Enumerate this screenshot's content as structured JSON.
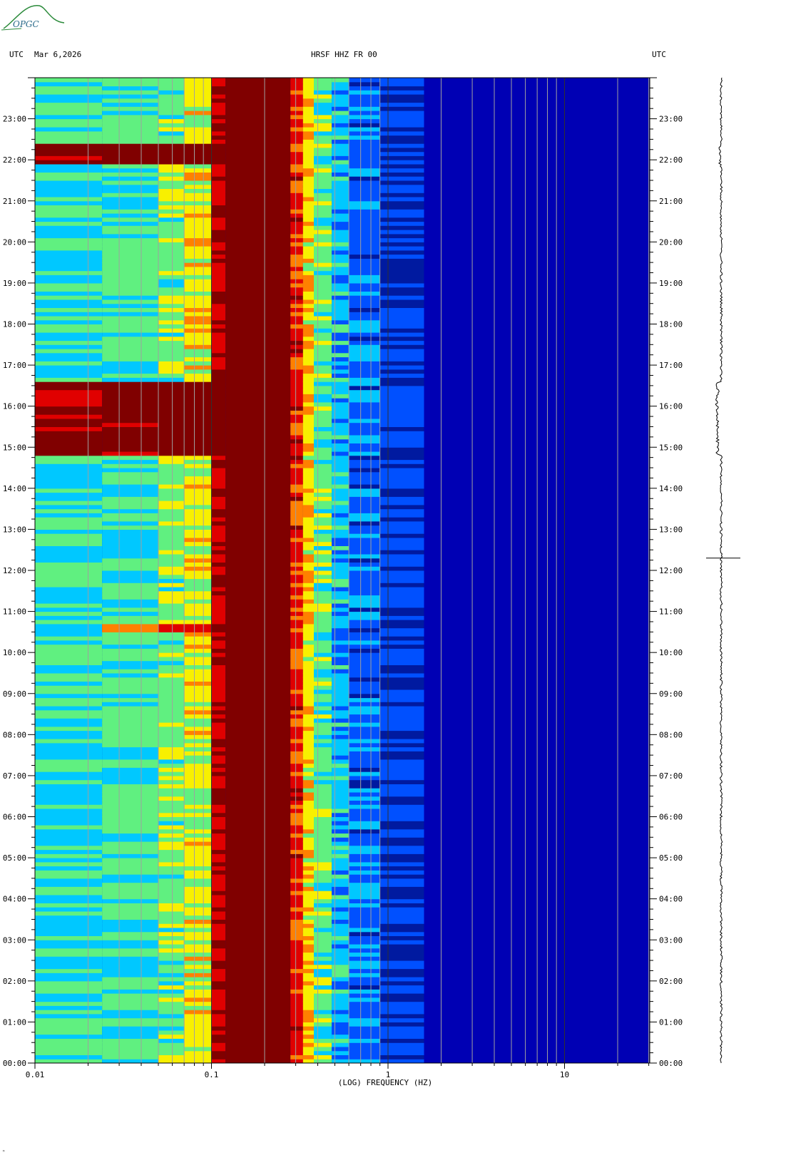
{
  "header": {
    "left_zone": "UTC",
    "date": "Mar 6,2026",
    "station": "HRSF HHZ FR 00",
    "right_zone": "UTC"
  },
  "logo_text": "OPGC",
  "footer_mark": "ᴹ",
  "colors": {
    "background": "#0000b4",
    "dark_blue": "#001aa0",
    "mid_blue": "#0050ff",
    "cyan": "#00c8ff",
    "green": "#60f080",
    "yellow": "#f8f000",
    "orange": "#ff8000",
    "red": "#e00000",
    "dark_red": "#800000",
    "grid": "#a0a0a0",
    "logo": "#2a8a3a"
  },
  "chart_data": {
    "type": "heatmap",
    "title": "HRSF HHZ FR 00",
    "xlabel": "(LOG) FREQUENCY (HZ)",
    "ylabel": "",
    "x_scale": "log",
    "xlim": [
      0.01,
      30
    ],
    "x_tick_labels": [
      "0.01",
      "0.1",
      "1",
      "10"
    ],
    "x_tick_values": [
      0.01,
      0.1,
      1,
      10
    ],
    "ylim_hours": [
      0,
      24
    ],
    "y_tick_labels": [
      "00:00",
      "01:00",
      "02:00",
      "03:00",
      "04:00",
      "05:00",
      "06:00",
      "07:00",
      "08:00",
      "09:00",
      "10:00",
      "11:00",
      "12:00",
      "13:00",
      "14:00",
      "15:00",
      "16:00",
      "17:00",
      "18:00",
      "19:00",
      "20:00",
      "21:00",
      "22:00",
      "23:00"
    ],
    "grid": true,
    "events": [
      {
        "start_hour": 14.8,
        "end_hour": 16.6,
        "level": "high"
      },
      {
        "start_hour": 21.9,
        "end_hour": 22.4,
        "level": "high"
      },
      {
        "start_hour": 10.5,
        "end_hour": 10.7,
        "level": "medium"
      },
      {
        "start_hour": 12.3,
        "end_hour": 12.35,
        "level": "spike"
      }
    ]
  }
}
